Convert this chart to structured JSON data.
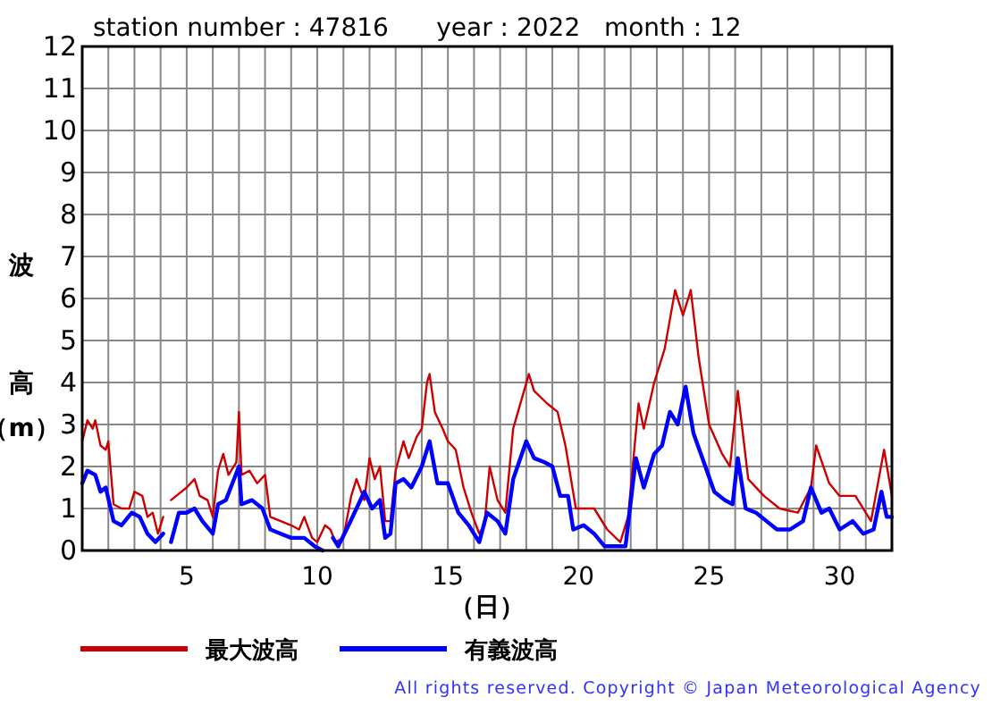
{
  "chart_data": {
    "type": "line",
    "title": "station number : 47816      year : 2022   month : 12",
    "xlabel": "（日）",
    "ylabel": "波高（m）",
    "xlim": [
      1,
      32
    ],
    "ylim": [
      0,
      12
    ],
    "xticks": [
      {
        "value": 1,
        "label": null
      },
      {
        "value": 2,
        "label": null
      },
      {
        "value": 3,
        "label": null
      },
      {
        "value": 4,
        "label": null
      },
      5,
      {
        "value": 6,
        "label": null
      },
      {
        "value": 7,
        "label": null
      },
      {
        "value": 8,
        "label": null
      },
      {
        "value": 9,
        "label": null
      },
      10,
      {
        "value": 11,
        "label": null
      },
      {
        "value": 12,
        "label": null
      },
      {
        "value": 13,
        "label": null
      },
      {
        "value": 14,
        "label": null
      },
      15,
      {
        "value": 16,
        "label": null
      },
      {
        "value": 17,
        "label": null
      },
      {
        "value": 18,
        "label": null
      },
      {
        "value": 19,
        "label": null
      },
      20,
      {
        "value": 21,
        "label": null
      },
      {
        "value": 22,
        "label": null
      },
      {
        "value": 23,
        "label": null
      },
      {
        "value": 24,
        "label": null
      },
      25,
      {
        "value": 26,
        "label": null
      },
      {
        "value": 27,
        "label": null
      },
      {
        "value": 28,
        "label": null
      },
      {
        "value": 29,
        "label": null
      },
      30,
      {
        "value": 31,
        "label": null
      },
      {
        "value": 32,
        "label": null
      }
    ],
    "yticks": [
      0,
      1,
      2,
      3,
      4,
      5,
      6,
      7,
      8,
      9,
      10,
      11,
      12
    ],
    "grid": true,
    "legend": "bottom",
    "marker": "none",
    "line_style": "solid",
    "annotations": [
      "All rights reserved. Copyright © Japan Meteorological Agency"
    ],
    "series": [
      {
        "name": "最大波高",
        "color": "#cc0000",
        "x": [
          1.0,
          1.2,
          1.4,
          1.5,
          1.7,
          1.9,
          2.0,
          2.2,
          2.5,
          2.8,
          3.0,
          3.3,
          3.5,
          3.7,
          3.9,
          4.1,
          4.2,
          4.4,
          4.6,
          5.0,
          5.3,
          5.5,
          5.8,
          6.0,
          6.2,
          6.4,
          6.6,
          6.9,
          7.0,
          7.1,
          7.4,
          7.7,
          8.0,
          8.2,
          8.6,
          9.0,
          9.3,
          9.5,
          9.8,
          10.0,
          10.3,
          10.5,
          10.7,
          11.0,
          11.3,
          11.5,
          11.8,
          12.0,
          12.2,
          12.4,
          12.6,
          12.8,
          13.0,
          13.3,
          13.5,
          13.8,
          14.0,
          14.2,
          14.3,
          14.5,
          14.8,
          15.0,
          15.3,
          15.6,
          15.9,
          16.2,
          16.4,
          16.6,
          16.9,
          17.2,
          17.5,
          18.1,
          18.3,
          18.8,
          19.2,
          19.5,
          19.9,
          20.6,
          21.1,
          21.6,
          21.9,
          22.3,
          22.5,
          22.9,
          23.3,
          23.7,
          24.0,
          24.3,
          24.6,
          25.0,
          25.5,
          25.8,
          26.1,
          26.5,
          27.1,
          27.7,
          28.4,
          28.9,
          29.1,
          29.6,
          30.0,
          30.6,
          31.2,
          31.7,
          32.0
        ],
        "values": [
          2.6,
          3.1,
          2.9,
          3.1,
          2.5,
          2.4,
          2.6,
          1.1,
          1.0,
          1.0,
          1.4,
          1.3,
          0.8,
          0.9,
          0.4,
          0.8,
          null,
          1.2,
          1.3,
          1.5,
          1.7,
          1.3,
          1.2,
          0.8,
          1.9,
          2.3,
          1.8,
          2.1,
          3.3,
          1.8,
          1.9,
          1.6,
          1.8,
          0.8,
          0.7,
          0.6,
          0.5,
          0.8,
          0.3,
          0.2,
          0.6,
          0.5,
          0.2,
          0.3,
          1.3,
          1.7,
          1.2,
          2.2,
          1.7,
          2.0,
          0.7,
          0.7,
          1.9,
          2.6,
          2.2,
          2.7,
          2.9,
          4.0,
          4.2,
          3.3,
          2.9,
          2.6,
          2.4,
          1.5,
          0.9,
          0.4,
          0.6,
          2.0,
          1.2,
          0.9,
          2.9,
          4.2,
          3.8,
          3.5,
          3.3,
          2.5,
          1.0,
          1.0,
          0.5,
          0.2,
          0.8,
          3.5,
          2.9,
          4.0,
          4.8,
          6.2,
          5.6,
          6.2,
          4.6,
          3.0,
          2.3,
          2.0,
          3.8,
          1.7,
          1.3,
          1.0,
          0.9,
          1.5,
          2.5,
          1.6,
          1.3,
          1.3,
          0.7,
          2.4,
          1.3
        ]
      },
      {
        "name": "有義波高",
        "color": "#0000ff",
        "x": [
          1.0,
          1.2,
          1.5,
          1.7,
          1.9,
          2.2,
          2.5,
          2.9,
          3.2,
          3.5,
          3.8,
          4.1,
          4.2,
          4.4,
          4.7,
          5.0,
          5.3,
          5.6,
          6.0,
          6.2,
          6.5,
          7.0,
          7.1,
          7.5,
          7.9,
          8.2,
          8.6,
          9.0,
          9.5,
          9.9,
          10.2,
          10.5,
          10.6,
          10.8,
          11.2,
          11.5,
          11.8,
          12.1,
          12.4,
          12.6,
          12.8,
          13.0,
          13.3,
          13.6,
          14.0,
          14.3,
          14.6,
          15.0,
          15.4,
          15.8,
          16.2,
          16.5,
          16.9,
          17.2,
          17.5,
          18.0,
          18.3,
          18.7,
          19.0,
          19.3,
          19.6,
          19.8,
          20.2,
          20.6,
          21.0,
          21.5,
          21.8,
          22.2,
          22.5,
          22.9,
          23.2,
          23.5,
          23.8,
          24.1,
          24.4,
          24.8,
          25.2,
          25.6,
          25.9,
          26.1,
          26.4,
          26.8,
          27.2,
          27.6,
          28.1,
          28.6,
          28.9,
          29.3,
          29.6,
          30.0,
          30.5,
          30.9,
          31.3,
          31.6,
          31.8,
          32.0
        ],
        "values": [
          1.6,
          1.9,
          1.8,
          1.4,
          1.5,
          0.7,
          0.6,
          0.9,
          0.8,
          0.4,
          0.2,
          0.4,
          null,
          0.2,
          0.9,
          0.9,
          1.0,
          0.7,
          0.4,
          1.1,
          1.2,
          2.0,
          1.1,
          1.2,
          1.0,
          0.5,
          0.4,
          0.3,
          0.3,
          0.1,
          0.0,
          null,
          0.3,
          0.1,
          0.6,
          1.0,
          1.4,
          1.0,
          1.2,
          0.3,
          0.4,
          1.6,
          1.7,
          1.5,
          2.0,
          2.6,
          1.6,
          1.6,
          0.9,
          0.6,
          0.2,
          0.9,
          0.7,
          0.4,
          1.7,
          2.6,
          2.2,
          2.1,
          2.0,
          1.3,
          1.3,
          0.5,
          0.6,
          0.4,
          0.1,
          0.1,
          0.1,
          2.2,
          1.5,
          2.3,
          2.5,
          3.3,
          3.0,
          3.9,
          2.8,
          2.1,
          1.4,
          1.2,
          1.1,
          2.2,
          1.0,
          0.9,
          0.7,
          0.5,
          0.5,
          0.7,
          1.5,
          0.9,
          1.0,
          0.5,
          0.7,
          0.4,
          0.5,
          1.4,
          0.8,
          0.8
        ]
      }
    ]
  }
}
